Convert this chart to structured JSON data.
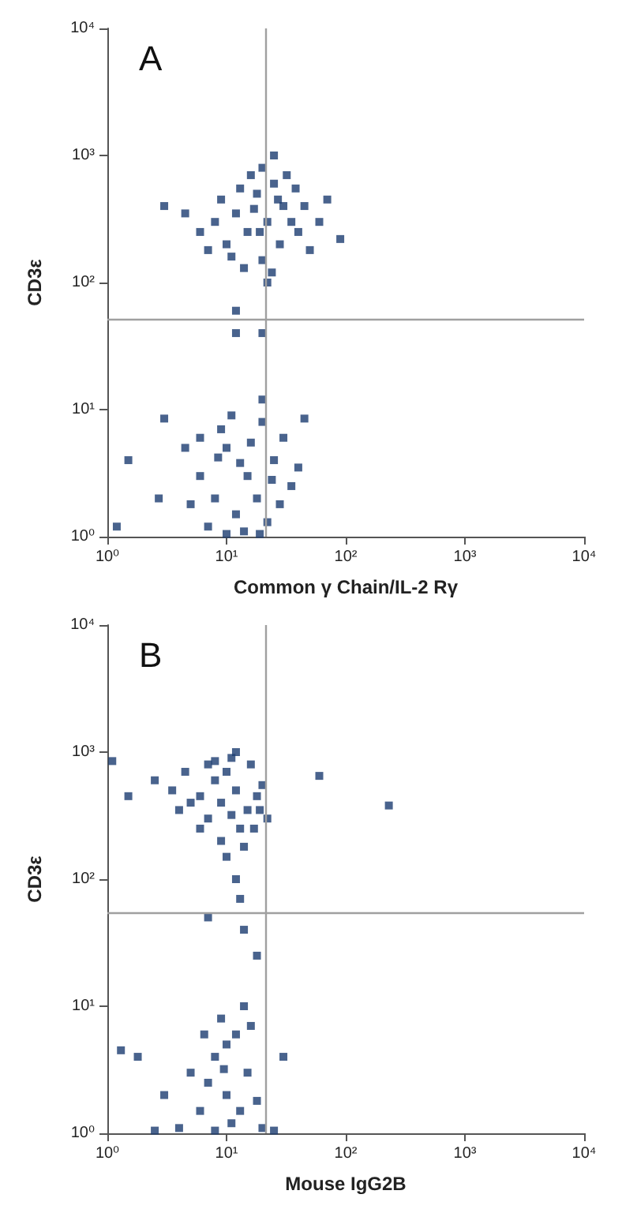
{
  "chart_data": [
    {
      "type": "scatter",
      "annotations": [
        "A"
      ],
      "xlabel": "Common γ Chain/IL-2 Rγ",
      "ylabel": "CD3ε",
      "log": "xy",
      "grid": false,
      "marker": "square",
      "xlim": [
        1,
        10000
      ],
      "ylim": [
        1,
        10000
      ],
      "xticks": [
        {
          "value": 1,
          "label": "10⁰"
        },
        {
          "value": 10,
          "label": "10¹"
        },
        {
          "value": 100,
          "label": "10²"
        },
        {
          "value": 1000,
          "label": "10³"
        },
        {
          "value": 10000,
          "label": "10⁴"
        }
      ],
      "yticks": [
        {
          "value": 1,
          "label": "10⁰"
        },
        {
          "value": 10,
          "label": "10¹"
        },
        {
          "value": 100,
          "label": "10²"
        },
        {
          "value": 1000,
          "label": "10³"
        },
        {
          "value": 10000,
          "label": "10⁴"
        }
      ],
      "ref_lines": [
        {
          "axis": "x",
          "value": 21,
          "color": "#a0a0a0"
        },
        {
          "axis": "y",
          "value": 52,
          "color": "#a0a0a0"
        }
      ],
      "series": [
        {
          "color": "#1b3c70",
          "x": [
            22,
            15,
            30,
            18,
            28,
            12,
            35,
            25,
            20,
            40,
            10,
            8,
            6,
            45,
            32,
            16,
            24,
            14,
            50,
            9,
            20,
            27,
            13,
            38,
            22,
            19,
            11,
            7,
            60,
            17,
            4.5,
            3,
            70,
            90,
            25,
            12,
            1.2,
            1.5,
            20,
            20,
            12,
            3,
            2.7,
            10,
            15,
            8,
            20,
            12,
            25,
            6,
            18,
            30,
            9,
            14,
            22,
            5,
            35,
            11,
            16,
            7,
            28,
            40,
            13,
            19,
            4.5,
            8.5,
            24,
            45,
            6,
            10
          ],
          "values": [
            300,
            250,
            400,
            500,
            200,
            350,
            300,
            600,
            150,
            250,
            200,
            300,
            250,
            400,
            700,
            700,
            120,
            130,
            180,
            450,
            800,
            450,
            550,
            550,
            100,
            250,
            160,
            180,
            300,
            380,
            350,
            400,
            450,
            220,
            1000,
            60,
            1.2,
            4,
            40,
            12,
            40,
            8.5,
            2,
            5,
            3,
            2,
            8,
            1.5,
            4,
            3,
            2,
            6,
            7,
            1.1,
            1.3,
            1.8,
            2.5,
            9,
            5.5,
            1.2,
            1.8,
            3.5,
            3.8,
            1.05,
            5,
            4.2,
            2.8,
            8.5,
            6,
            1.05
          ]
        }
      ]
    },
    {
      "type": "scatter",
      "annotations": [
        "B"
      ],
      "xlabel": "Mouse IgG2B",
      "ylabel": "CD3ε",
      "log": "xy",
      "grid": false,
      "marker": "square",
      "xlim": [
        1,
        10000
      ],
      "ylim": [
        1,
        10000
      ],
      "xticks": [
        {
          "value": 1,
          "label": "10⁰"
        },
        {
          "value": 10,
          "label": "10¹"
        },
        {
          "value": 100,
          "label": "10²"
        },
        {
          "value": 1000,
          "label": "10³"
        },
        {
          "value": 10000,
          "label": "10⁴"
        }
      ],
      "yticks": [
        {
          "value": 1,
          "label": "10⁰"
        },
        {
          "value": 10,
          "label": "10¹"
        },
        {
          "value": 100,
          "label": "10²"
        },
        {
          "value": 1000,
          "label": "10³"
        },
        {
          "value": 10000,
          "label": "10⁴"
        }
      ],
      "ref_lines": [
        {
          "axis": "x",
          "value": 21,
          "color": "#a0a0a0"
        },
        {
          "axis": "y",
          "value": 55,
          "color": "#a0a0a0"
        }
      ],
      "series": [
        {
          "color": "#1b3c70",
          "x": [
            9,
            12,
            7,
            15,
            10,
            6,
            18,
            8,
            13,
            5,
            11,
            20,
            4,
            16,
            9,
            14,
            3.5,
            22,
            7,
            12,
            2.5,
            10,
            6,
            17,
            8,
            4.5,
            19,
            11,
            230,
            60,
            1.1,
            1.5,
            12,
            13,
            14,
            7,
            18,
            8,
            10,
            12,
            6,
            15,
            9,
            7,
            11,
            14,
            5,
            18,
            10,
            4,
            13,
            20,
            8,
            16,
            3,
            6.5,
            9.5,
            2.5,
            25,
            1.3,
            1.8,
            30
          ],
          "values": [
            400,
            500,
            300,
            350,
            700,
            450,
            450,
            600,
            250,
            400,
            900,
            550,
            350,
            800,
            200,
            180,
            500,
            300,
            800,
            1000,
            600,
            150,
            250,
            250,
            850,
            700,
            350,
            320,
            380,
            650,
            850,
            450,
            100,
            70,
            40,
            50,
            25,
            4,
            2,
            6,
            1.5,
            3,
            8,
            2.5,
            1.2,
            10,
            3,
            1.8,
            5,
            1.1,
            1.5,
            1.1,
            1.05,
            7,
            2,
            6,
            3.2,
            1.05,
            1.05,
            4.5,
            4,
            4
          ]
        }
      ]
    }
  ]
}
